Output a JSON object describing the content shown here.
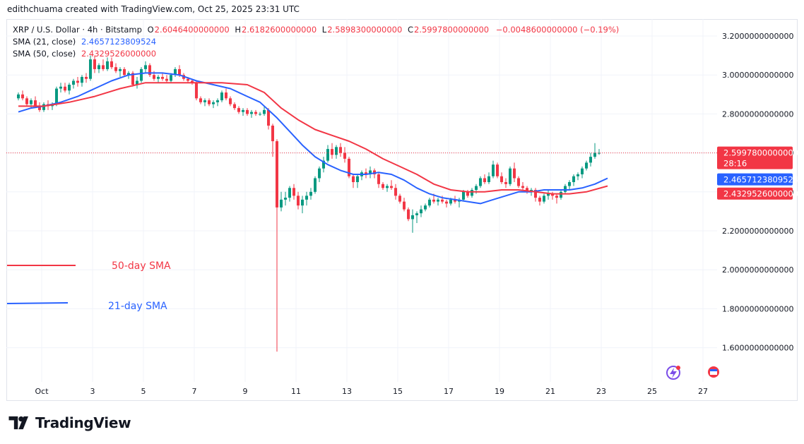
{
  "header": {
    "caption": "edithchuama created with TradingView.com, Oct 25, 2025 23:31 UTC"
  },
  "legend": {
    "symbol": "XRP / U.S. Dollar · 4h · Bitstamp",
    "o_label": "O",
    "o_value": "2.6046400000000",
    "h_label": "H",
    "h_value": "2.6182600000000",
    "l_label": "L",
    "l_value": "2.5898300000000",
    "c_label": "C",
    "c_value": "2.5997800000000",
    "change": "−0.0048600000000 (−0.19%)",
    "sma21_label": "SMA (21, close)",
    "sma21_value": "2.4657123809524",
    "sma50_label": "SMA (50, close)",
    "sma50_value": "2.4329526000000"
  },
  "annotations": {
    "sma50_text": "50-day SMA",
    "sma21_text": "21-day SMA"
  },
  "price_badges": {
    "last_price": "2.5997800000000",
    "countdown": "28:16",
    "sma21": "2.4657123809524",
    "sma50": "2.4329526000000"
  },
  "colors": {
    "up": "#089981",
    "down": "#f23645",
    "sma21": "#2962ff",
    "sma50": "#f23645",
    "grid": "#f0f3fa"
  },
  "icons": [
    "lightning-icon",
    "calendar-icon"
  ],
  "brand": {
    "name": "TradingView",
    "logo": "tradingview-logo"
  },
  "chart_data": {
    "type": "candlestick",
    "title": "XRP / U.S. Dollar · 4h · Bitstamp",
    "x_ticks": [
      "Oct",
      "3",
      "5",
      "7",
      "9",
      "11",
      "13",
      "15",
      "17",
      "19",
      "21",
      "23",
      "25",
      "27"
    ],
    "y_ticks": [
      "3.2000000000000",
      "3.0000000000000",
      "2.8000000000000",
      "2.6000000000000",
      "2.4000000000000",
      "2.2000000000000",
      "2.0000000000000",
      "1.8000000000000",
      "1.6000000000000"
    ],
    "ylim": [
      1.5,
      3.25
    ],
    "candles_per_day": 6,
    "x_start": "Sep 30",
    "candles": [
      [
        2.88,
        2.91,
        2.87,
        2.9
      ],
      [
        2.9,
        2.92,
        2.87,
        2.88
      ],
      [
        2.88,
        2.89,
        2.84,
        2.85
      ],
      [
        2.85,
        2.88,
        2.83,
        2.87
      ],
      [
        2.87,
        2.89,
        2.83,
        2.84
      ],
      [
        2.84,
        2.86,
        2.81,
        2.82
      ],
      [
        2.82,
        2.86,
        2.81,
        2.85
      ],
      [
        2.85,
        2.87,
        2.82,
        2.84
      ],
      [
        2.84,
        2.86,
        2.82,
        2.85
      ],
      [
        2.85,
        2.94,
        2.84,
        2.93
      ],
      [
        2.93,
        2.96,
        2.91,
        2.94
      ],
      [
        2.94,
        2.96,
        2.91,
        2.92
      ],
      [
        2.92,
        2.96,
        2.9,
        2.95
      ],
      [
        2.95,
        2.98,
        2.93,
        2.97
      ],
      [
        2.97,
        2.99,
        2.94,
        2.96
      ],
      [
        2.96,
        3.0,
        2.94,
        2.99
      ],
      [
        2.99,
        3.01,
        2.96,
        2.98
      ],
      [
        2.98,
        3.1,
        2.97,
        3.08
      ],
      [
        3.08,
        3.1,
        3.01,
        3.03
      ],
      [
        3.03,
        3.06,
        3.01,
        3.05
      ],
      [
        3.05,
        3.08,
        3.02,
        3.03
      ],
      [
        3.03,
        3.09,
        3.02,
        3.07
      ],
      [
        3.07,
        3.09,
        3.03,
        3.04
      ],
      [
        3.04,
        3.06,
        3.01,
        3.02
      ],
      [
        3.02,
        3.04,
        2.99,
        3.03
      ],
      [
        3.03,
        3.04,
        2.99,
        3.0
      ],
      [
        3.0,
        3.02,
        2.98,
        3.01
      ],
      [
        3.01,
        3.02,
        2.94,
        2.95
      ],
      [
        2.95,
        2.99,
        2.93,
        2.97
      ],
      [
        2.97,
        3.04,
        2.96,
        3.03
      ],
      [
        3.03,
        3.07,
        3.01,
        3.05
      ],
      [
        3.05,
        3.06,
        2.99,
        3.0
      ],
      [
        3.0,
        3.02,
        2.97,
        2.98
      ],
      [
        2.98,
        3.0,
        2.96,
        2.99
      ],
      [
        2.99,
        3.01,
        2.97,
        2.98
      ],
      [
        2.98,
        3.0,
        2.96,
        2.97
      ],
      [
        2.97,
        3.01,
        2.96,
        3.0
      ],
      [
        3.0,
        3.04,
        2.99,
        3.03
      ],
      [
        3.03,
        3.05,
        2.99,
        3.0
      ],
      [
        3.0,
        3.01,
        2.97,
        2.98
      ],
      [
        2.98,
        2.99,
        2.96,
        2.97
      ],
      [
        2.97,
        2.98,
        2.95,
        2.96
      ],
      [
        2.96,
        2.97,
        2.87,
        2.88
      ],
      [
        2.88,
        2.89,
        2.85,
        2.86
      ],
      [
        2.86,
        2.88,
        2.84,
        2.87
      ],
      [
        2.87,
        2.88,
        2.84,
        2.85
      ],
      [
        2.85,
        2.87,
        2.83,
        2.86
      ],
      [
        2.86,
        2.88,
        2.84,
        2.87
      ],
      [
        2.87,
        2.92,
        2.86,
        2.91
      ],
      [
        2.91,
        2.93,
        2.87,
        2.88
      ],
      [
        2.88,
        2.89,
        2.84,
        2.85
      ],
      [
        2.85,
        2.86,
        2.82,
        2.83
      ],
      [
        2.83,
        2.84,
        2.8,
        2.81
      ],
      [
        2.81,
        2.83,
        2.79,
        2.82
      ],
      [
        2.82,
        2.83,
        2.79,
        2.8
      ],
      [
        2.8,
        2.82,
        2.78,
        2.81
      ],
      [
        2.81,
        2.82,
        2.79,
        2.8
      ],
      [
        2.8,
        2.81,
        2.79,
        2.8
      ],
      [
        2.8,
        2.84,
        2.79,
        2.82
      ],
      [
        2.82,
        2.83,
        2.72,
        2.74
      ],
      [
        2.74,
        2.75,
        2.58,
        2.66
      ],
      [
        2.66,
        2.67,
        1.58,
        2.32
      ],
      [
        2.32,
        2.4,
        2.3,
        2.36
      ],
      [
        2.36,
        2.4,
        2.33,
        2.37
      ],
      [
        2.37,
        2.43,
        2.35,
        2.42
      ],
      [
        2.42,
        2.44,
        2.36,
        2.38
      ],
      [
        2.38,
        2.4,
        2.31,
        2.33
      ],
      [
        2.33,
        2.38,
        2.29,
        2.36
      ],
      [
        2.36,
        2.4,
        2.33,
        2.38
      ],
      [
        2.38,
        2.42,
        2.36,
        2.4
      ],
      [
        2.4,
        2.48,
        2.39,
        2.47
      ],
      [
        2.47,
        2.53,
        2.45,
        2.52
      ],
      [
        2.52,
        2.58,
        2.5,
        2.56
      ],
      [
        2.56,
        2.64,
        2.55,
        2.62
      ],
      [
        2.62,
        2.65,
        2.57,
        2.59
      ],
      [
        2.59,
        2.64,
        2.57,
        2.63
      ],
      [
        2.63,
        2.65,
        2.58,
        2.6
      ],
      [
        2.6,
        2.63,
        2.55,
        2.57
      ],
      [
        2.57,
        2.58,
        2.47,
        2.48
      ],
      [
        2.48,
        2.49,
        2.42,
        2.45
      ],
      [
        2.45,
        2.49,
        2.42,
        2.48
      ],
      [
        2.48,
        2.51,
        2.46,
        2.5
      ],
      [
        2.5,
        2.52,
        2.47,
        2.49
      ],
      [
        2.49,
        2.53,
        2.47,
        2.51
      ],
      [
        2.51,
        2.52,
        2.47,
        2.49
      ],
      [
        2.49,
        2.5,
        2.42,
        2.44
      ],
      [
        2.44,
        2.45,
        2.41,
        2.42
      ],
      [
        2.42,
        2.44,
        2.4,
        2.43
      ],
      [
        2.43,
        2.46,
        2.41,
        2.42
      ],
      [
        2.42,
        2.44,
        2.36,
        2.38
      ],
      [
        2.38,
        2.39,
        2.34,
        2.35
      ],
      [
        2.35,
        2.37,
        2.3,
        2.31
      ],
      [
        2.31,
        2.32,
        2.25,
        2.26
      ],
      [
        2.26,
        2.31,
        2.19,
        2.28
      ],
      [
        2.28,
        2.3,
        2.24,
        2.29
      ],
      [
        2.29,
        2.33,
        2.27,
        2.31
      ],
      [
        2.31,
        2.34,
        2.3,
        2.33
      ],
      [
        2.33,
        2.37,
        2.32,
        2.36
      ],
      [
        2.36,
        2.39,
        2.34,
        2.35
      ],
      [
        2.35,
        2.37,
        2.33,
        2.36
      ],
      [
        2.36,
        2.38,
        2.34,
        2.35
      ],
      [
        2.35,
        2.36,
        2.32,
        2.34
      ],
      [
        2.34,
        2.37,
        2.33,
        2.36
      ],
      [
        2.36,
        2.38,
        2.34,
        2.35
      ],
      [
        2.35,
        2.37,
        2.32,
        2.36
      ],
      [
        2.36,
        2.41,
        2.35,
        2.4
      ],
      [
        2.4,
        2.41,
        2.37,
        2.38
      ],
      [
        2.38,
        2.42,
        2.37,
        2.41
      ],
      [
        2.41,
        2.44,
        2.39,
        2.43
      ],
      [
        2.43,
        2.48,
        2.42,
        2.47
      ],
      [
        2.47,
        2.49,
        2.44,
        2.45
      ],
      [
        2.45,
        2.5,
        2.44,
        2.48
      ],
      [
        2.48,
        2.56,
        2.47,
        2.54
      ],
      [
        2.54,
        2.55,
        2.47,
        2.48
      ],
      [
        2.48,
        2.5,
        2.44,
        2.45
      ],
      [
        2.45,
        2.47,
        2.42,
        2.44
      ],
      [
        2.44,
        2.53,
        2.43,
        2.52
      ],
      [
        2.52,
        2.55,
        2.45,
        2.47
      ],
      [
        2.47,
        2.48,
        2.42,
        2.43
      ],
      [
        2.43,
        2.45,
        2.41,
        2.42
      ],
      [
        2.42,
        2.43,
        2.39,
        2.4
      ],
      [
        2.4,
        2.42,
        2.38,
        2.41
      ],
      [
        2.41,
        2.42,
        2.35,
        2.37
      ],
      [
        2.37,
        2.38,
        2.33,
        2.35
      ],
      [
        2.35,
        2.39,
        2.34,
        2.38
      ],
      [
        2.38,
        2.41,
        2.36,
        2.39
      ],
      [
        2.39,
        2.4,
        2.36,
        2.38
      ],
      [
        2.38,
        2.39,
        2.34,
        2.37
      ],
      [
        2.37,
        2.41,
        2.36,
        2.4
      ],
      [
        2.4,
        2.44,
        2.39,
        2.43
      ],
      [
        2.43,
        2.46,
        2.41,
        2.45
      ],
      [
        2.45,
        2.49,
        2.43,
        2.48
      ],
      [
        2.48,
        2.5,
        2.46,
        2.49
      ],
      [
        2.49,
        2.53,
        2.47,
        2.52
      ],
      [
        2.52,
        2.56,
        2.51,
        2.55
      ],
      [
        2.55,
        2.6,
        2.53,
        2.58
      ],
      [
        2.58,
        2.65,
        2.57,
        2.6
      ],
      [
        2.6,
        2.62,
        2.59,
        2.6
      ]
    ],
    "series": [
      {
        "name": "SMA (21, close)",
        "color": "#2962ff",
        "values": [
          [
            0,
            2.81
          ],
          [
            3,
            2.83
          ],
          [
            6,
            2.84
          ],
          [
            10,
            2.86
          ],
          [
            14,
            2.89
          ],
          [
            18,
            2.93
          ],
          [
            22,
            2.97
          ],
          [
            26,
            3.0
          ],
          [
            30,
            3.01
          ],
          [
            34,
            3.01
          ],
          [
            38,
            3.0
          ],
          [
            42,
            2.97
          ],
          [
            46,
            2.95
          ],
          [
            50,
            2.93
          ],
          [
            54,
            2.89
          ],
          [
            57,
            2.86
          ],
          [
            61,
            2.78
          ],
          [
            64,
            2.71
          ],
          [
            67,
            2.64
          ],
          [
            70,
            2.58
          ],
          [
            73,
            2.54
          ],
          [
            76,
            2.51
          ],
          [
            79,
            2.49
          ],
          [
            82,
            2.49
          ],
          [
            85,
            2.5
          ],
          [
            88,
            2.49
          ],
          [
            91,
            2.46
          ],
          [
            94,
            2.42
          ],
          [
            97,
            2.39
          ],
          [
            100,
            2.37
          ],
          [
            103,
            2.36
          ],
          [
            106,
            2.35
          ],
          [
            109,
            2.34
          ],
          [
            112,
            2.36
          ],
          [
            115,
            2.38
          ],
          [
            118,
            2.4
          ],
          [
            121,
            2.4
          ],
          [
            124,
            2.41
          ],
          [
            127,
            2.41
          ],
          [
            130,
            2.41
          ],
          [
            133,
            2.42
          ],
          [
            136,
            2.44
          ],
          [
            139,
            2.47
          ]
        ]
      },
      {
        "name": "SMA (50, close)",
        "color": "#f23645",
        "values": [
          [
            0,
            2.84
          ],
          [
            6,
            2.84
          ],
          [
            12,
            2.86
          ],
          [
            18,
            2.89
          ],
          [
            24,
            2.93
          ],
          [
            30,
            2.96
          ],
          [
            36,
            2.96
          ],
          [
            42,
            2.96
          ],
          [
            48,
            2.96
          ],
          [
            54,
            2.95
          ],
          [
            58,
            2.91
          ],
          [
            62,
            2.83
          ],
          [
            66,
            2.77
          ],
          [
            70,
            2.72
          ],
          [
            74,
            2.69
          ],
          [
            78,
            2.66
          ],
          [
            82,
            2.62
          ],
          [
            86,
            2.57
          ],
          [
            90,
            2.53
          ],
          [
            94,
            2.49
          ],
          [
            98,
            2.44
          ],
          [
            102,
            2.41
          ],
          [
            106,
            2.4
          ],
          [
            110,
            2.4
          ],
          [
            114,
            2.41
          ],
          [
            118,
            2.41
          ],
          [
            122,
            2.4
          ],
          [
            126,
            2.39
          ],
          [
            130,
            2.39
          ],
          [
            134,
            2.4
          ],
          [
            139,
            2.43
          ]
        ]
      }
    ],
    "last_price_line": 2.59978
  }
}
